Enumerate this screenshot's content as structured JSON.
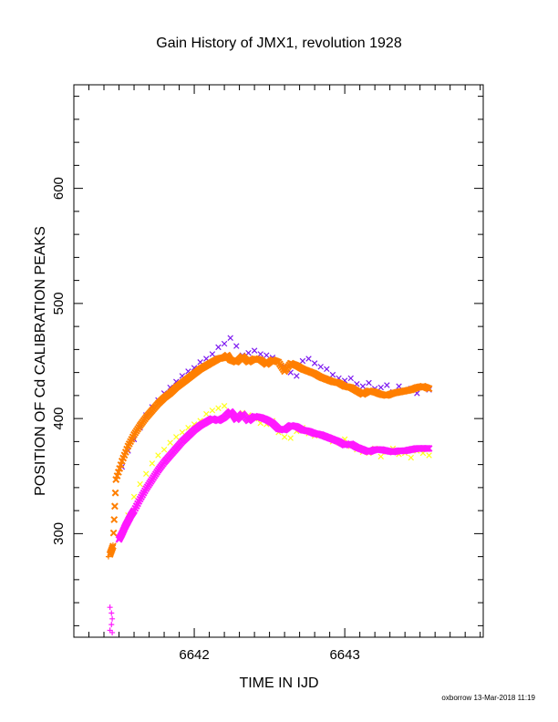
{
  "chart_data": {
    "type": "scatter",
    "title": "Gain History of JMX1, revolution 1928",
    "xlabel": "TIME IN IJD",
    "ylabel": "POSITION OF Cd CALIBRATION PEAKS",
    "xlim": [
      6641.2,
      6643.92
    ],
    "ylim": [
      210,
      690
    ],
    "x_ticks": [
      6642,
      6643
    ],
    "y_ticks": [
      300,
      400,
      500,
      600
    ],
    "grid": false,
    "legend": "none",
    "footer": "oxborrow 13-Mar-2018 11:19",
    "series": [
      {
        "color": "#7b16f0",
        "marker": "x",
        "x": [
          6641.48,
          6641.52,
          6641.56,
          6641.6,
          6641.64,
          6641.68,
          6641.72,
          6641.76,
          6641.8,
          6641.84,
          6641.88,
          6641.92,
          6641.96,
          6642.0,
          6642.04,
          6642.08,
          6642.12,
          6642.16,
          6642.2,
          6642.24,
          6642.28,
          6642.32,
          6642.36,
          6642.4,
          6642.44,
          6642.48,
          6642.52,
          6642.56,
          6642.6,
          6642.64,
          6642.68,
          6642.72,
          6642.76,
          6642.8,
          6642.84,
          6642.88,
          6642.92,
          6642.96,
          6643.0,
          6643.04,
          6643.08,
          6643.12,
          6643.16,
          6643.2,
          6643.24,
          6643.28,
          6643.32,
          6643.36,
          6643.4,
          6643.44,
          6643.48,
          6643.52,
          6643.56
        ],
        "y": [
          347,
          358,
          372,
          382,
          392,
          403,
          410,
          416,
          422,
          427,
          432,
          437,
          441,
          444,
          449,
          452,
          456,
          462,
          465,
          470,
          463,
          455,
          457,
          459,
          456,
          455,
          453,
          449,
          445,
          440,
          437,
          450,
          452,
          448,
          445,
          443,
          438,
          435,
          433,
          435,
          430,
          428,
          431,
          426,
          427,
          429,
          423,
          428,
          424,
          426,
          422,
          428,
          425
        ]
      },
      {
        "color": "#ff7f00",
        "marker": "x-dense",
        "x": [
          6641.44,
          6641.46,
          6641.48,
          6641.52,
          6641.56,
          6641.6,
          6641.64,
          6641.68,
          6641.72,
          6641.76,
          6641.8,
          6641.84,
          6641.88,
          6641.92,
          6641.96,
          6642.0,
          6642.04,
          6642.08,
          6642.12,
          6642.16,
          6642.2,
          6642.22,
          6642.24,
          6642.28,
          6642.32,
          6642.36,
          6642.4,
          6642.44,
          6642.48,
          6642.52,
          6642.56,
          6642.6,
          6642.64,
          6642.68,
          6642.72,
          6642.76,
          6642.8,
          6642.84,
          6642.88,
          6642.92,
          6642.96,
          6643.0,
          6643.04,
          6643.08,
          6643.12,
          6643.16,
          6643.2,
          6643.24,
          6643.28,
          6643.32,
          6643.36,
          6643.4,
          6643.44,
          6643.48,
          6643.52,
          6643.56
        ],
        "y": [
          282,
          289,
          347,
          363,
          376,
          386,
          394,
          401,
          407,
          413,
          418,
          422,
          427,
          431,
          435,
          439,
          443,
          446,
          449,
          452,
          453,
          455,
          451,
          449,
          454,
          449,
          452,
          451,
          447,
          451,
          449,
          441,
          448,
          446,
          443,
          441,
          439,
          436,
          434,
          432,
          431,
          428,
          427,
          424,
          421,
          424,
          423,
          421,
          420,
          422,
          423,
          424,
          425,
          427,
          428,
          426
        ]
      },
      {
        "color": "#ffff1a",
        "marker": "x",
        "x": [
          6641.52,
          6641.56,
          6641.6,
          6641.64,
          6641.68,
          6641.72,
          6641.76,
          6641.8,
          6641.84,
          6641.88,
          6641.92,
          6641.96,
          6642.0,
          6642.04,
          6642.08,
          6642.12,
          6642.16,
          6642.2,
          6642.24,
          6642.28,
          6642.32,
          6642.36,
          6642.4,
          6642.44,
          6642.48,
          6642.52,
          6642.56,
          6642.6,
          6642.64,
          6642.68,
          6642.72,
          6642.76,
          6642.8,
          6642.84,
          6642.88,
          6642.92,
          6642.96,
          6643.0,
          6643.04,
          6643.08,
          6643.12,
          6643.16,
          6643.2,
          6643.24,
          6643.28,
          6643.32,
          6643.36,
          6643.4,
          6643.44,
          6643.48,
          6643.52,
          6643.56
        ],
        "y": [
          300,
          316,
          332,
          343,
          352,
          361,
          368,
          373,
          379,
          384,
          388,
          392,
          395,
          398,
          404,
          407,
          409,
          411,
          406,
          403,
          405,
          403,
          400,
          396,
          395,
          398,
          388,
          384,
          383,
          389,
          392,
          387,
          385,
          386,
          384,
          380,
          379,
          382,
          376,
          373,
          371,
          370,
          374,
          367,
          371,
          374,
          369,
          370,
          366,
          372,
          370,
          368
        ]
      },
      {
        "color": "#ff19ff",
        "marker": "x-dense",
        "x": [
          6641.5,
          6641.52,
          6641.54,
          6641.56,
          6641.58,
          6641.6,
          6641.64,
          6641.68,
          6641.72,
          6641.76,
          6641.8,
          6641.84,
          6641.88,
          6641.92,
          6641.96,
          6642.0,
          6642.04,
          6642.08,
          6642.12,
          6642.16,
          6642.2,
          6642.24,
          6642.26,
          6642.28,
          6642.32,
          6642.36,
          6642.4,
          6642.44,
          6642.48,
          6642.52,
          6642.56,
          6642.6,
          6642.64,
          6642.68,
          6642.72,
          6642.76,
          6642.8,
          6642.84,
          6642.88,
          6642.92,
          6642.96,
          6643.0,
          6643.04,
          6643.08,
          6643.12,
          6643.16,
          6643.2,
          6643.24,
          6643.28,
          6643.32,
          6643.36,
          6643.4,
          6643.44,
          6643.48,
          6643.52,
          6643.56
        ],
        "y": [
          295,
          300,
          306,
          311,
          316,
          320,
          330,
          339,
          347,
          355,
          362,
          368,
          374,
          380,
          385,
          390,
          394,
          397,
          400,
          398,
          401,
          406,
          403,
          399,
          404,
          398,
          402,
          401,
          399,
          396,
          391,
          390,
          394,
          393,
          390,
          389,
          387,
          386,
          384,
          382,
          380,
          377,
          378,
          375,
          373,
          371,
          373,
          373,
          372,
          371,
          372,
          372,
          373,
          374,
          374,
          374
        ]
      },
      {
        "color": "#ff19ff",
        "marker": "+",
        "x": [
          6641.44,
          6641.45,
          6641.455,
          6641.45,
          6641.44,
          6641.455
        ],
        "y": [
          216,
          221,
          226,
          231,
          236,
          214
        ]
      },
      {
        "color": "#ff7f00",
        "marker": "+",
        "x": [
          6641.43,
          6641.44,
          6641.46
        ],
        "y": [
          280,
          284,
          290
        ]
      }
    ]
  }
}
